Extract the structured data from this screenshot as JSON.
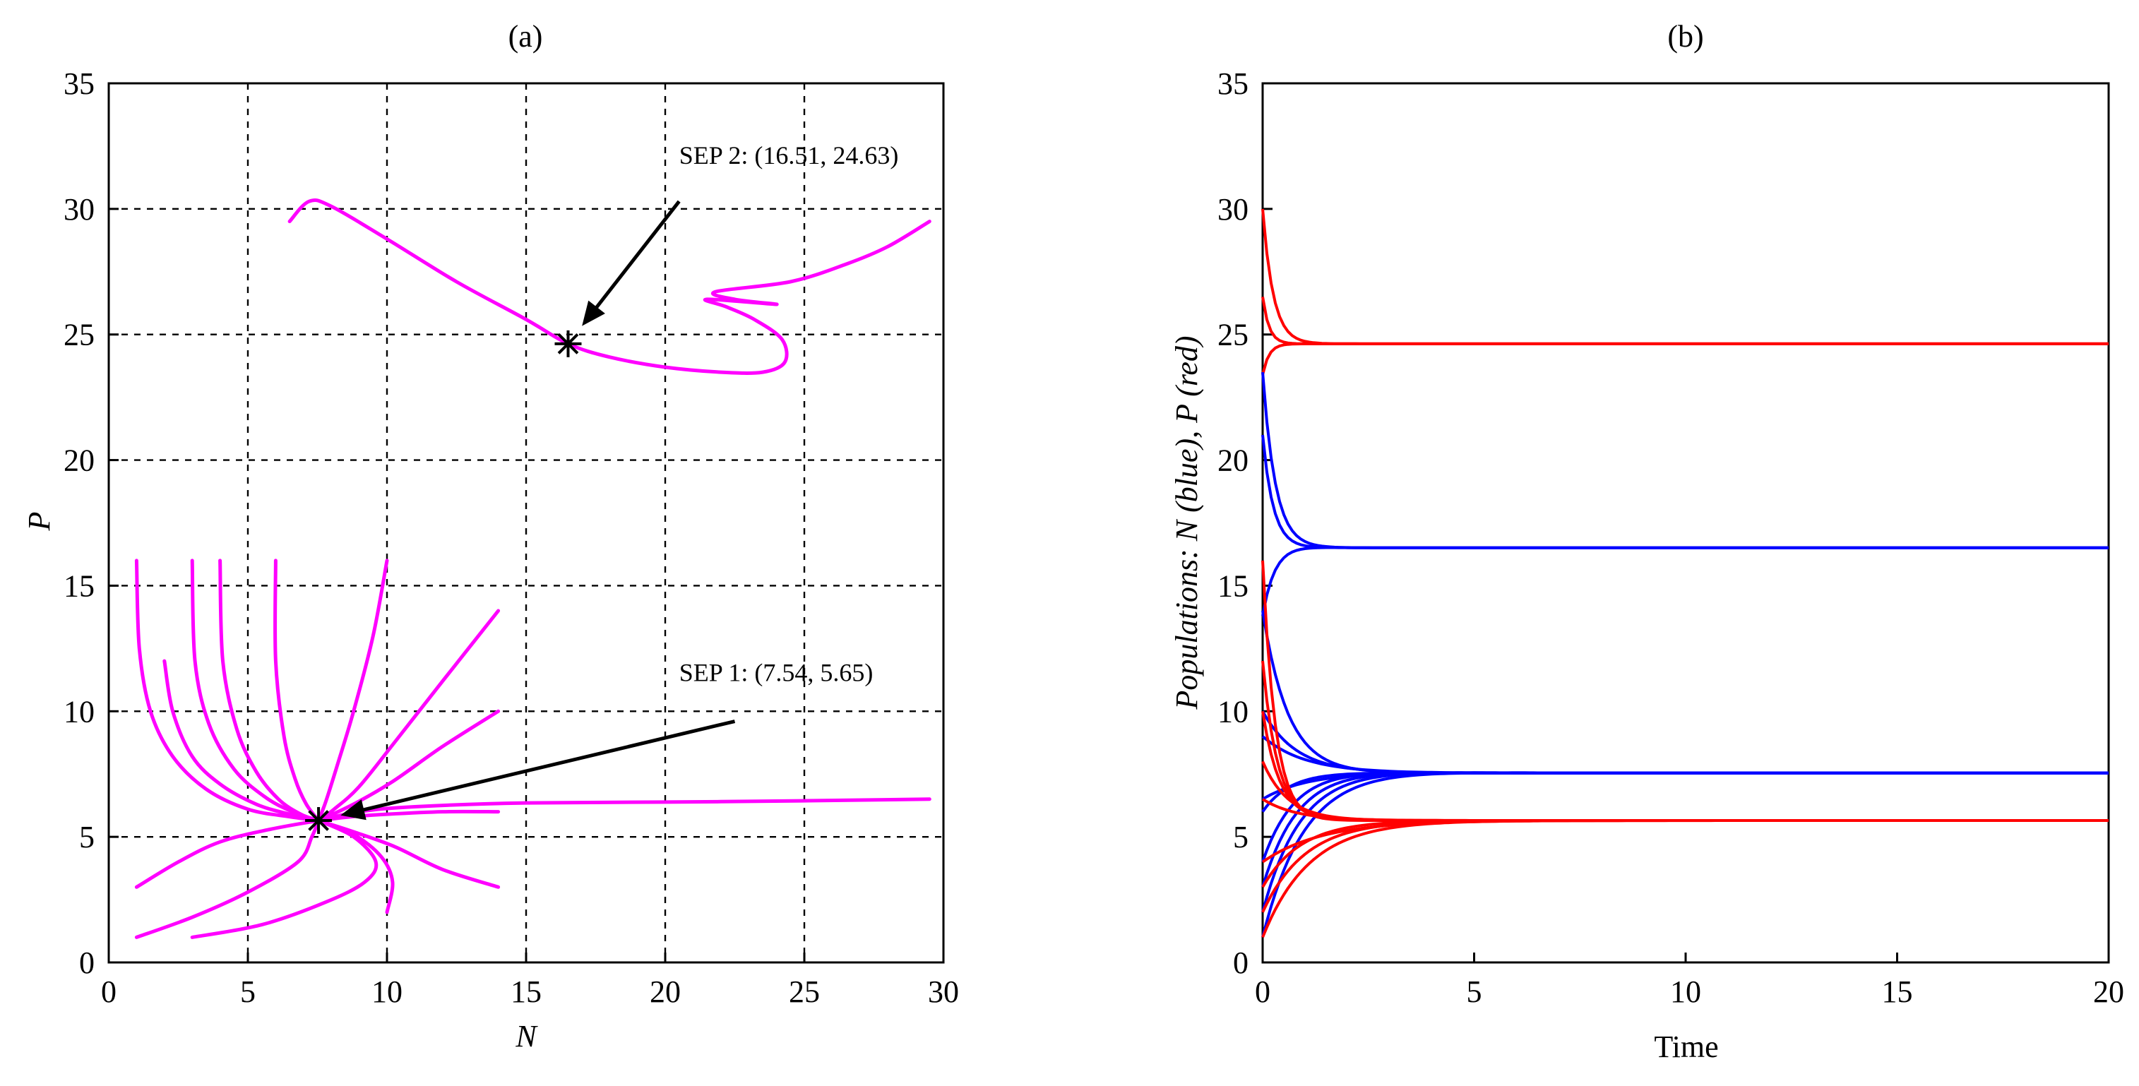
{
  "chart_data": [
    {
      "type": "line",
      "panel": "(a)",
      "title": "(a)",
      "xlabel": "N",
      "ylabel": "P",
      "xlim": [
        0,
        30
      ],
      "ylim": [
        0,
        35
      ],
      "xticks": [
        0,
        5,
        10,
        15,
        20,
        25,
        30
      ],
      "yticks": [
        0,
        5,
        10,
        15,
        20,
        25,
        30,
        35
      ],
      "grid": true,
      "line_color": "#ff00ff",
      "equilibria": [
        {
          "label": "SEP 1: (7.54, 5.65)",
          "x": 7.54,
          "y": 5.65,
          "marker": "*",
          "annotation_from": [
            22.5,
            9.6
          ]
        },
        {
          "label": "SEP 2: (16.51, 24.63)",
          "x": 16.51,
          "y": 24.63,
          "marker": "*",
          "annotation_from": [
            20.5,
            30.3
          ]
        }
      ],
      "series": [
        {
          "name": "traj-a-1",
          "points": [
            [
              1,
              16
            ],
            [
              1.1,
              12.5
            ],
            [
              1.5,
              10
            ],
            [
              2.3,
              8.2
            ],
            [
              3.5,
              6.9
            ],
            [
              5,
              6.1
            ],
            [
              6.5,
              5.8
            ],
            [
              7.54,
              5.65
            ]
          ]
        },
        {
          "name": "traj-a-2",
          "points": [
            [
              2,
              12
            ],
            [
              2.3,
              10
            ],
            [
              3,
              8.2
            ],
            [
              4,
              7.1
            ],
            [
              5.3,
              6.3
            ],
            [
              6.5,
              5.9
            ],
            [
              7.54,
              5.65
            ]
          ]
        },
        {
          "name": "traj-a-3",
          "points": [
            [
              3,
              16
            ],
            [
              3.1,
              12
            ],
            [
              3.6,
              9.5
            ],
            [
              4.5,
              7.7
            ],
            [
              5.6,
              6.6
            ],
            [
              6.6,
              6
            ],
            [
              7.54,
              5.65
            ]
          ]
        },
        {
          "name": "traj-a-4",
          "points": [
            [
              4,
              16
            ],
            [
              4.1,
              12
            ],
            [
              4.6,
              9.3
            ],
            [
              5.3,
              7.6
            ],
            [
              6.1,
              6.5
            ],
            [
              6.9,
              5.9
            ],
            [
              7.54,
              5.65
            ]
          ]
        },
        {
          "name": "traj-a-5",
          "points": [
            [
              6,
              16
            ],
            [
              6,
              12
            ],
            [
              6.3,
              9
            ],
            [
              6.7,
              7.3
            ],
            [
              7.1,
              6.3
            ],
            [
              7.54,
              5.65
            ]
          ]
        },
        {
          "name": "traj-a-6",
          "points": [
            [
              10,
              16
            ],
            [
              9.5,
              13
            ],
            [
              8.8,
              10
            ],
            [
              8.2,
              7.8
            ],
            [
              7.8,
              6.4
            ],
            [
              7.54,
              5.65
            ]
          ]
        },
        {
          "name": "traj-a-7",
          "points": [
            [
              14,
              14
            ],
            [
              12,
              11.2
            ],
            [
              10.3,
              8.8
            ],
            [
              9,
              7
            ],
            [
              8.1,
              6.1
            ],
            [
              7.54,
              5.65
            ]
          ]
        },
        {
          "name": "traj-a-8",
          "points": [
            [
              14,
              10
            ],
            [
              12,
              8.6
            ],
            [
              10.2,
              7.2
            ],
            [
              8.8,
              6.3
            ],
            [
              7.54,
              5.65
            ]
          ]
        },
        {
          "name": "traj-a-9",
          "points": [
            [
              29.5,
              6.5
            ],
            [
              22,
              6.4
            ],
            [
              15,
              6.35
            ],
            [
              11,
              6.2
            ],
            [
              9,
              6
            ],
            [
              7.54,
              5.65
            ]
          ]
        },
        {
          "name": "traj-a-10",
          "points": [
            [
              14,
              6
            ],
            [
              12,
              6
            ],
            [
              10,
              5.9
            ],
            [
              8.7,
              5.8
            ],
            [
              7.54,
              5.65
            ]
          ]
        },
        {
          "name": "traj-a-11",
          "points": [
            [
              14,
              3
            ],
            [
              12,
              3.7
            ],
            [
              10.3,
              4.6
            ],
            [
              8.8,
              5.2
            ],
            [
              7.54,
              5.65
            ]
          ]
        },
        {
          "name": "traj-a-12",
          "points": [
            [
              10,
              2
            ],
            [
              10.2,
              3.2
            ],
            [
              9.8,
              4.2
            ],
            [
              8.8,
              5.1
            ],
            [
              7.54,
              5.65
            ]
          ]
        },
        {
          "name": "traj-a-13",
          "points": [
            [
              1,
              3
            ],
            [
              2.5,
              4
            ],
            [
              4,
              4.8
            ],
            [
              5.8,
              5.3
            ],
            [
              7.54,
              5.65
            ]
          ]
        },
        {
          "name": "traj-a-14",
          "points": [
            [
              1,
              1
            ],
            [
              3,
              1.8
            ],
            [
              5,
              2.8
            ],
            [
              6.8,
              4
            ],
            [
              7.3,
              5
            ],
            [
              7.54,
              5.65
            ]
          ]
        },
        {
          "name": "traj-a-15",
          "points": [
            [
              3,
              1
            ],
            [
              5.5,
              1.5
            ],
            [
              7.8,
              2.4
            ],
            [
              9.2,
              3.2
            ],
            [
              9.6,
              4
            ],
            [
              8.8,
              5
            ],
            [
              7.54,
              5.65
            ]
          ]
        },
        {
          "name": "traj-a-16",
          "points": [
            [
              6.5,
              29.5
            ],
            [
              7.2,
              30.3
            ],
            [
              8,
              30.1
            ],
            [
              10,
              28.8
            ],
            [
              12.5,
              27.1
            ],
            [
              15,
              25.6
            ],
            [
              16.51,
              24.63
            ],
            [
              18,
              24.1
            ],
            [
              20,
              23.7
            ],
            [
              22,
              23.5
            ],
            [
              23.5,
              23.5
            ],
            [
              24.3,
              23.9
            ],
            [
              24.2,
              24.8
            ],
            [
              23.2,
              25.6
            ],
            [
              22.2,
              26.1
            ],
            [
              21.5,
              26.4
            ],
            [
              24,
              26.2
            ],
            [
              22.5,
              26.4
            ],
            [
              21.8,
              26.7
            ],
            [
              24.5,
              27.1
            ],
            [
              26.5,
              27.8
            ],
            [
              28,
              28.5
            ],
            [
              29.5,
              29.5
            ]
          ]
        }
      ]
    },
    {
      "type": "line",
      "panel": "(b)",
      "title": "(b)",
      "xlabel": "Time",
      "ylabel": "Populations: N (blue), P (red)",
      "xlim": [
        0,
        20
      ],
      "ylim": [
        0,
        35
      ],
      "xticks": [
        0,
        5,
        10,
        15,
        20
      ],
      "yticks": [
        0,
        5,
        10,
        15,
        20,
        25,
        30,
        35
      ],
      "grid": false,
      "series_colors": {
        "N": "#0000ff",
        "P": "#ff0000"
      },
      "equilibria": {
        "N": [
          7.54,
          16.51
        ],
        "P": [
          5.65,
          24.63
        ]
      },
      "series": [
        {
          "name": "P-high-1",
          "color": "#ff0000",
          "from": 30,
          "to": 24.63,
          "tau": 0.25
        },
        {
          "name": "P-high-2",
          "color": "#ff0000",
          "from": 26.5,
          "to": 24.63,
          "tau": 0.15
        },
        {
          "name": "P-high-3",
          "color": "#ff0000",
          "from": 23.4,
          "to": 24.63,
          "tau": 0.15
        },
        {
          "name": "N-high-1",
          "color": "#0000ff",
          "from": 23.5,
          "to": 16.51,
          "tau": 0.3
        },
        {
          "name": "N-high-2",
          "color": "#0000ff",
          "from": 21,
          "to": 16.51,
          "tau": 0.25
        },
        {
          "name": "N-high-3",
          "color": "#0000ff",
          "from": 13.8,
          "to": 16.51,
          "tau": 0.35
        },
        {
          "name": "N-low-1",
          "color": "#0000ff",
          "from": 1,
          "to": 7.54,
          "tau": 1.2
        },
        {
          "name": "N-low-2",
          "color": "#0000ff",
          "from": 2,
          "to": 7.54,
          "tau": 1.1
        },
        {
          "name": "N-low-3",
          "color": "#0000ff",
          "from": 3,
          "to": 7.54,
          "tau": 1.0
        },
        {
          "name": "N-low-4",
          "color": "#0000ff",
          "from": 4,
          "to": 7.54,
          "tau": 0.9
        },
        {
          "name": "N-low-5",
          "color": "#0000ff",
          "from": 6,
          "to": 7.54,
          "tau": 0.8
        },
        {
          "name": "N-low-6",
          "color": "#0000ff",
          "from": 10,
          "to": 7.54,
          "tau": 0.8
        },
        {
          "name": "N-low-7",
          "color": "#0000ff",
          "from": 14,
          "to": 7.54,
          "tau": 0.6
        },
        {
          "name": "N-low-8",
          "color": "#0000ff",
          "from": 9,
          "to": 7.54,
          "tau": 1.0
        },
        {
          "name": "N-low-9",
          "color": "#0000ff",
          "from": 6.5,
          "to": 7.54,
          "tau": 1.3
        },
        {
          "name": "P-low-1",
          "color": "#ff0000",
          "from": 16,
          "to": 5.65,
          "tau": 0.3
        },
        {
          "name": "P-low-2",
          "color": "#ff0000",
          "from": 12,
          "to": 5.65,
          "tau": 0.35
        },
        {
          "name": "P-low-3",
          "color": "#ff0000",
          "from": 10,
          "to": 5.65,
          "tau": 0.4
        },
        {
          "name": "P-low-4",
          "color": "#ff0000",
          "from": 8,
          "to": 5.65,
          "tau": 0.6
        },
        {
          "name": "P-low-5",
          "color": "#ff0000",
          "from": 6.5,
          "to": 5.65,
          "tau": 0.8
        },
        {
          "name": "P-low-6",
          "color": "#ff0000",
          "from": 3,
          "to": 5.65,
          "tau": 0.9
        },
        {
          "name": "P-low-7",
          "color": "#ff0000",
          "from": 2,
          "to": 5.65,
          "tau": 1.0
        },
        {
          "name": "P-low-8",
          "color": "#ff0000",
          "from": 1,
          "to": 5.65,
          "tau": 1.1
        },
        {
          "name": "P-low-9",
          "color": "#ff0000",
          "from": 4,
          "to": 5.65,
          "tau": 1.4
        }
      ]
    }
  ]
}
